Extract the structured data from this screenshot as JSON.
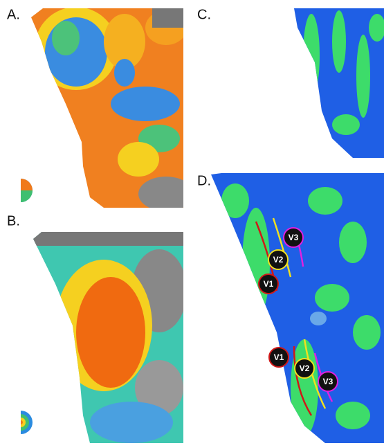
{
  "panels": [
    {
      "label": "A."
    },
    {
      "label": "B."
    },
    {
      "label": "C."
    },
    {
      "label": "D.",
      "regions": [
        {
          "label": "V3"
        },
        {
          "label": "V2"
        },
        {
          "label": "V1"
        },
        {
          "label": "V1"
        },
        {
          "label": "V2"
        },
        {
          "label": "V3"
        }
      ]
    }
  ]
}
